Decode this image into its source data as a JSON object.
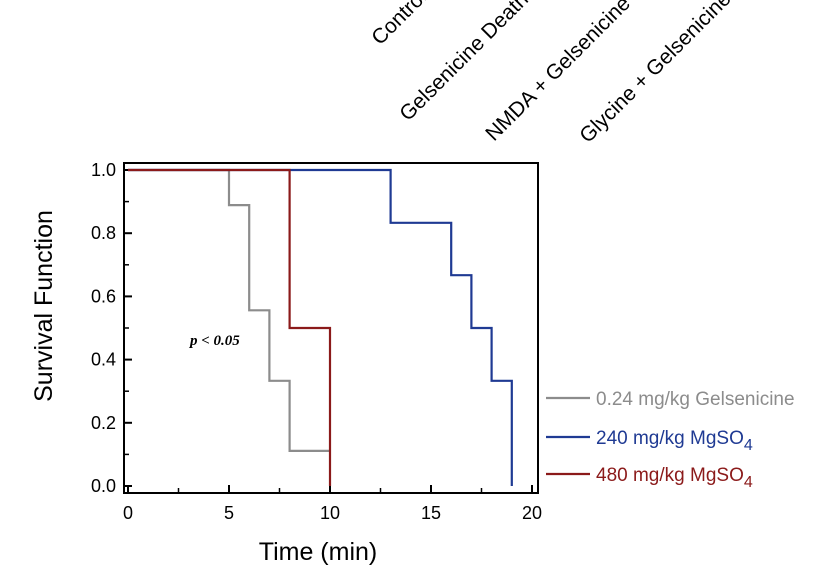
{
  "header_labels": [
    "Control",
    "Gelsenicine Death",
    "NMDA + Gelsenicine",
    "Glycine + Gelsenicine"
  ],
  "chart_data": {
    "type": "line",
    "step": true,
    "xlabel": "Time (min)",
    "ylabel": "Survival Function",
    "xlim": [
      0,
      20
    ],
    "ylim": [
      0,
      1
    ],
    "xticks": [
      0,
      5,
      10,
      15,
      20
    ],
    "yticks": [
      0.0,
      0.2,
      0.4,
      0.6,
      0.8,
      1.0
    ],
    "xtick_labels": [
      "0",
      "5",
      "10",
      "15",
      "20"
    ],
    "ytick_labels": [
      "0.0",
      "0.2",
      "0.4",
      "0.6",
      "0.8",
      "1.0"
    ],
    "grid": false,
    "legend_position": "right",
    "annotation": "p < 0.05",
    "series": [
      {
        "name": "0.24 mg/kg Gelsenicine",
        "name_main": "0.24 mg/kg Gelsenicine",
        "name_sub": "",
        "color": "#8c8c8c",
        "x": [
          0,
          5,
          5,
          6,
          6,
          7,
          7,
          8,
          8,
          10
        ],
        "y": [
          1.0,
          1.0,
          0.889,
          0.889,
          0.556,
          0.556,
          0.333,
          0.333,
          0.111,
          0.111
        ]
      },
      {
        "name": "240 mg/kg MgSO4",
        "name_main": "240 mg/kg MgSO",
        "name_sub": "4",
        "color": "#1f3a93",
        "x": [
          0,
          13,
          13,
          16,
          16,
          17,
          17,
          18,
          18,
          19,
          19
        ],
        "y": [
          1.0,
          1.0,
          0.833,
          0.833,
          0.667,
          0.667,
          0.5,
          0.5,
          0.333,
          0.333,
          0.0
        ]
      },
      {
        "name": "480 mg/kg MgSO4",
        "name_main": "480 mg/kg MgSO",
        "name_sub": "4",
        "color": "#8b1a1a",
        "x": [
          0,
          8,
          8,
          10,
          10
        ],
        "y": [
          1.0,
          1.0,
          0.5,
          0.5,
          0.0
        ]
      }
    ]
  }
}
